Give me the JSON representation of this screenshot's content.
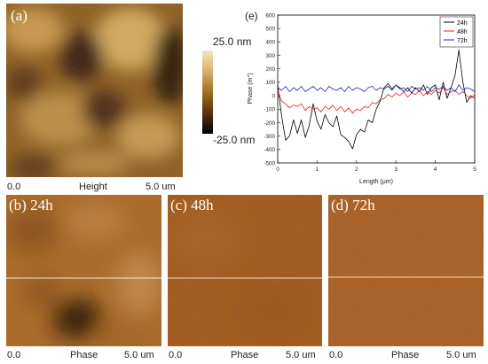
{
  "panels": {
    "a": {
      "letter": "(a)",
      "cap_left": "0.0",
      "cap_mid": "Height",
      "cap_right": "5.0 um"
    },
    "b": {
      "letter": "(b) 24h",
      "cap_left": "0.0",
      "cap_mid": "Phase",
      "cap_right": "5.0 um"
    },
    "c": {
      "letter": "(c) 48h",
      "cap_left": "0.0",
      "cap_mid": "Phase",
      "cap_right": "5.0 um"
    },
    "d": {
      "letter": "(d) 72h",
      "cap_left": "0.0",
      "cap_mid": "Phase",
      "cap_right": "5.0 um"
    }
  },
  "colorbar": {
    "top_label": "25.0 nm",
    "bottom_label": "-25.0 nm",
    "colors": [
      "#f3e6c0",
      "#b8862b",
      "#6a3c0d",
      "#000000"
    ]
  },
  "colors": {
    "panel_a_base": "#8c5a1a",
    "panel_b_base": "#a9661f",
    "panel_c_base": "#a35a1c",
    "panel_d_base": "#a85c1f",
    "scan_line": "#ffffff"
  },
  "chart_data": {
    "type": "line",
    "panel_label": "(e)",
    "xlabel": "Length (μm)",
    "ylabel": "Phase (m°)",
    "xlim": [
      0,
      5
    ],
    "ylim": [
      -500,
      600
    ],
    "xticks": [
      "0",
      "1",
      "2",
      "3",
      "4",
      "5"
    ],
    "yticks": [
      "-500",
      "-400",
      "-300",
      "-200",
      "-100",
      "0",
      "100",
      "200",
      "300",
      "400",
      "500",
      "600"
    ],
    "legend_position": "top-right",
    "series": [
      {
        "name": "24h",
        "color": "#000000",
        "x": [
          0,
          0.1,
          0.2,
          0.3,
          0.4,
          0.5,
          0.6,
          0.7,
          0.8,
          0.9,
          1.0,
          1.1,
          1.2,
          1.3,
          1.4,
          1.5,
          1.6,
          1.7,
          1.8,
          1.9,
          2.0,
          2.1,
          2.2,
          2.3,
          2.4,
          2.5,
          2.6,
          2.7,
          2.8,
          2.9,
          3.0,
          3.1,
          3.2,
          3.3,
          3.4,
          3.5,
          3.6,
          3.7,
          3.8,
          3.9,
          4.0,
          4.1,
          4.2,
          4.3,
          4.4,
          4.5,
          4.6,
          4.7,
          4.8,
          4.9,
          5.0
        ],
        "y": [
          80,
          -150,
          -330,
          -300,
          -180,
          -280,
          -180,
          -310,
          -220,
          -60,
          -190,
          -250,
          -140,
          -200,
          -230,
          -150,
          -290,
          -310,
          -340,
          -395,
          -290,
          -250,
          -270,
          -180,
          -200,
          -100,
          -40,
          60,
          90,
          50,
          80,
          60,
          30,
          60,
          20,
          60,
          30,
          80,
          10,
          60,
          80,
          -30,
          100,
          -20,
          60,
          150,
          340,
          100,
          -50,
          0,
          -20
        ]
      },
      {
        "name": "48h",
        "color": "#e0201b",
        "x": [
          0,
          0.1,
          0.2,
          0.3,
          0.4,
          0.5,
          0.6,
          0.7,
          0.8,
          0.9,
          1.0,
          1.1,
          1.2,
          1.3,
          1.4,
          1.5,
          1.6,
          1.7,
          1.8,
          1.9,
          2.0,
          2.1,
          2.2,
          2.3,
          2.4,
          2.5,
          2.6,
          2.7,
          2.8,
          2.9,
          3.0,
          3.1,
          3.2,
          3.3,
          3.4,
          3.5,
          3.6,
          3.7,
          3.8,
          3.9,
          4.0,
          4.1,
          4.2,
          4.3,
          4.4,
          4.5,
          4.6,
          4.7,
          4.8,
          4.9,
          5.0
        ],
        "y": [
          40,
          -40,
          -60,
          -90,
          -70,
          -80,
          -60,
          -110,
          -80,
          -100,
          -90,
          -120,
          -80,
          -100,
          -70,
          -110,
          -80,
          -120,
          -90,
          -130,
          -100,
          -110,
          -80,
          -90,
          -50,
          -60,
          -30,
          -20,
          10,
          -10,
          20,
          0,
          30,
          -10,
          20,
          10,
          40,
          0,
          30,
          10,
          40,
          20,
          60,
          10,
          30,
          40,
          10,
          30,
          0,
          -20,
          10
        ]
      },
      {
        "name": "72h",
        "color": "#1f27b3",
        "x": [
          0,
          0.1,
          0.2,
          0.3,
          0.4,
          0.5,
          0.6,
          0.7,
          0.8,
          0.9,
          1.0,
          1.1,
          1.2,
          1.3,
          1.4,
          1.5,
          1.6,
          1.7,
          1.8,
          1.9,
          2.0,
          2.1,
          2.2,
          2.3,
          2.4,
          2.5,
          2.6,
          2.7,
          2.8,
          2.9,
          3.0,
          3.1,
          3.2,
          3.3,
          3.4,
          3.5,
          3.6,
          3.7,
          3.8,
          3.9,
          4.0,
          4.1,
          4.2,
          4.3,
          4.4,
          4.5,
          4.6,
          4.7,
          4.8,
          4.9,
          5.0
        ],
        "y": [
          60,
          40,
          70,
          30,
          60,
          40,
          70,
          30,
          50,
          70,
          40,
          60,
          30,
          70,
          50,
          40,
          60,
          30,
          70,
          40,
          60,
          50,
          30,
          60,
          70,
          40,
          60,
          50,
          70,
          40,
          80,
          50,
          60,
          30,
          70,
          50,
          60,
          40,
          70,
          30,
          60,
          50,
          70,
          40,
          60,
          30,
          80,
          40,
          60,
          50,
          30
        ]
      }
    ]
  }
}
